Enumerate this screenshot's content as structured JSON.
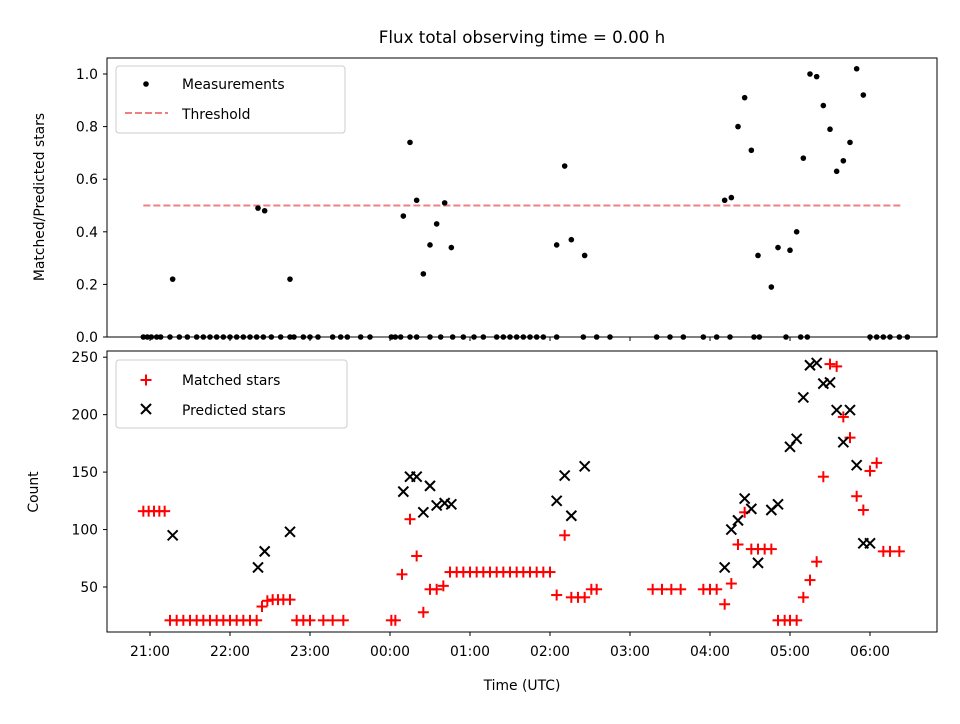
{
  "chart_data": [
    {
      "type": "scatter",
      "title": "Flux total observing time = 0.00 h",
      "xlabel": "",
      "ylabel": "Matched/Predicted stars",
      "ylim": [
        0,
        1.07
      ],
      "yticks": [
        "0.0",
        "0.2",
        "0.4",
        "0.6",
        "0.8",
        "1.0"
      ],
      "grid": false,
      "legend": {
        "position": "top-left",
        "entries": [
          "Measurements",
          "Threshold"
        ]
      },
      "series": [
        {
          "name": "Measurements",
          "marker": "dot",
          "color": "#000000",
          "x": [
            "20:55",
            "20:58",
            "21:01",
            "21:05",
            "21:08",
            "21:15",
            "21:22",
            "21:28",
            "21:35",
            "21:40",
            "21:45",
            "21:50",
            "21:55",
            "22:00",
            "22:05",
            "22:10",
            "22:15",
            "22:20",
            "22:25",
            "22:31",
            "22:38",
            "22:45",
            "22:48",
            "22:55",
            "23:00",
            "23:06",
            "23:17",
            "23:23",
            "23:28",
            "23:38",
            "23:45",
            "00:01",
            "00:04",
            "00:08",
            "00:15",
            "00:20",
            "00:30",
            "00:38",
            "00:47",
            "00:55",
            "01:03",
            "01:10",
            "01:20",
            "01:25",
            "01:30",
            "01:35",
            "01:40",
            "01:45",
            "01:50",
            "01:55",
            "02:05",
            "02:25",
            "02:35",
            "02:45",
            "03:20",
            "03:30",
            "03:40",
            "03:55",
            "04:05",
            "04:15",
            "04:33",
            "04:37",
            "04:57",
            "05:08",
            "05:13",
            "06:05",
            "06:10",
            "06:15",
            "06:22",
            "06:28",
            "21:17",
            "22:21",
            "22:26",
            "22:45",
            "00:10",
            "00:15",
            "00:20",
            "00:25",
            "00:30",
            "00:35",
            "00:41",
            "00:46",
            "02:05",
            "02:11",
            "02:16",
            "02:26",
            "04:11",
            "04:16",
            "04:21",
            "04:26",
            "04:31",
            "04:36",
            "04:46",
            "04:51",
            "05:00",
            "05:05",
            "05:10",
            "05:15",
            "05:20",
            "05:25",
            "05:30",
            "05:35",
            "05:40",
            "05:45",
            "05:50",
            "05:55",
            "06:00"
          ],
          "y": [
            0,
            0,
            0,
            0,
            0,
            0,
            0,
            0,
            0,
            0,
            0,
            0,
            0,
            0,
            0,
            0,
            0,
            0,
            0,
            0,
            0,
            0,
            0,
            0,
            0,
            0,
            0,
            0,
            0,
            0,
            0,
            0,
            0,
            0,
            0,
            0,
            0,
            0,
            0,
            0,
            0,
            0,
            0,
            0,
            0,
            0,
            0,
            0,
            0,
            0,
            0,
            0,
            0,
            0,
            0,
            0,
            0,
            0,
            0,
            0,
            0,
            0,
            0,
            0,
            0,
            0,
            0,
            0,
            0,
            0,
            0.22,
            0.49,
            0.48,
            0.22,
            0.46,
            0.74,
            0.52,
            0.24,
            0.35,
            0.43,
            0.51,
            0.34,
            0.35,
            0.65,
            0.37,
            0.31,
            0.52,
            0.53,
            0.8,
            0.91,
            0.71,
            0.31,
            0.19,
            0.34,
            0.33,
            0.4,
            0.68,
            1.0,
            0.99,
            0.88,
            0.79,
            0.63,
            0.67,
            0.74,
            1.02,
            0.92,
            0
          ]
        },
        {
          "name": "Threshold",
          "marker": "dashed-line",
          "color": "#f08080",
          "x": [
            "20:55",
            "06:25"
          ],
          "y": [
            0.5,
            0.5
          ]
        }
      ]
    },
    {
      "type": "scatter",
      "title": "",
      "xlabel": "Time (UTC)",
      "ylabel": "Count",
      "ylim": [
        10,
        255
      ],
      "yticks": [
        "50",
        "100",
        "150",
        "200",
        "250"
      ],
      "xticks": [
        "21:00",
        "22:00",
        "23:00",
        "00:00",
        "01:00",
        "02:00",
        "03:00",
        "04:00",
        "05:00",
        "06:00"
      ],
      "grid": false,
      "legend": {
        "position": "top-left",
        "entries": [
          "Matched stars",
          "Predicted stars"
        ]
      },
      "series": [
        {
          "name": "Matched stars",
          "marker": "plus",
          "color": "#ff0000",
          "x": [
            "20:55",
            "20:59",
            "21:03",
            "21:07",
            "21:11",
            "21:15",
            "21:20",
            "21:25",
            "21:30",
            "21:35",
            "21:40",
            "21:45",
            "21:50",
            "21:55",
            "22:00",
            "22:05",
            "22:10",
            "22:15",
            "22:20",
            "22:24",
            "22:28",
            "22:32",
            "22:36",
            "22:40",
            "22:45",
            "22:50",
            "22:55",
            "23:00",
            "23:10",
            "23:17",
            "23:25",
            "00:01",
            "00:04",
            "00:09",
            "00:15",
            "00:20",
            "00:25",
            "00:30",
            "00:35",
            "00:40",
            "00:45",
            "00:50",
            "00:55",
            "01:00",
            "01:05",
            "01:10",
            "01:15",
            "01:20",
            "01:25",
            "01:30",
            "01:35",
            "01:40",
            "01:45",
            "01:50",
            "01:55",
            "02:00",
            "02:05",
            "02:11",
            "02:16",
            "02:21",
            "02:26",
            "02:31",
            "02:35",
            "03:17",
            "03:24",
            "03:31",
            "03:38",
            "03:55",
            "04:00",
            "04:05",
            "04:11",
            "04:16",
            "04:21",
            "04:26",
            "04:31",
            "04:36",
            "04:41",
            "04:46",
            "04:51",
            "04:56",
            "05:00",
            "05:05",
            "05:10",
            "05:15",
            "05:20",
            "05:25",
            "05:30",
            "05:35",
            "05:40",
            "05:45",
            "05:50",
            "05:55",
            "06:00",
            "06:05",
            "06:10",
            "06:15",
            "06:22"
          ],
          "y": [
            116,
            116,
            116,
            116,
            116,
            21,
            21,
            21,
            21,
            21,
            21,
            21,
            21,
            21,
            21,
            21,
            21,
            21,
            21,
            33,
            38,
            39,
            39,
            39,
            39,
            21,
            21,
            21,
            21,
            21,
            21,
            21,
            21,
            61,
            109,
            77,
            28,
            48,
            48,
            51,
            63,
            63,
            63,
            63,
            63,
            63,
            63,
            63,
            63,
            63,
            63,
            63,
            63,
            63,
            63,
            63,
            43,
            95,
            41,
            41,
            41,
            48,
            48,
            48,
            48,
            48,
            48,
            48,
            48,
            48,
            35,
            53,
            87,
            115,
            83,
            83,
            83,
            83,
            21,
            21,
            21,
            21,
            41,
            56,
            72,
            146,
            244,
            242,
            198,
            180,
            129,
            117,
            151,
            158,
            81,
            81,
            81
          ]
        },
        {
          "name": "Predicted stars",
          "marker": "x",
          "color": "#000000",
          "x": [
            "21:17",
            "22:21",
            "22:26",
            "22:45",
            "00:10",
            "00:15",
            "00:20",
            "00:25",
            "00:30",
            "00:35",
            "00:41",
            "00:46",
            "02:05",
            "02:11",
            "02:16",
            "02:26",
            "04:11",
            "04:16",
            "04:21",
            "04:26",
            "04:31",
            "04:36",
            "04:46",
            "04:51",
            "05:00",
            "05:05",
            "05:10",
            "05:15",
            "05:20",
            "05:25",
            "05:30",
            "05:35",
            "05:40",
            "05:45",
            "05:50",
            "05:55",
            "06:00"
          ],
          "y": [
            95,
            67,
            81,
            98,
            133,
            146,
            146,
            115,
            138,
            121,
            123,
            122,
            125,
            147,
            112,
            155,
            67,
            100,
            108,
            127,
            118,
            71,
            117,
            122,
            172,
            179,
            215,
            243,
            245,
            227,
            228,
            204,
            176,
            204,
            156,
            88,
            88
          ]
        }
      ]
    }
  ]
}
